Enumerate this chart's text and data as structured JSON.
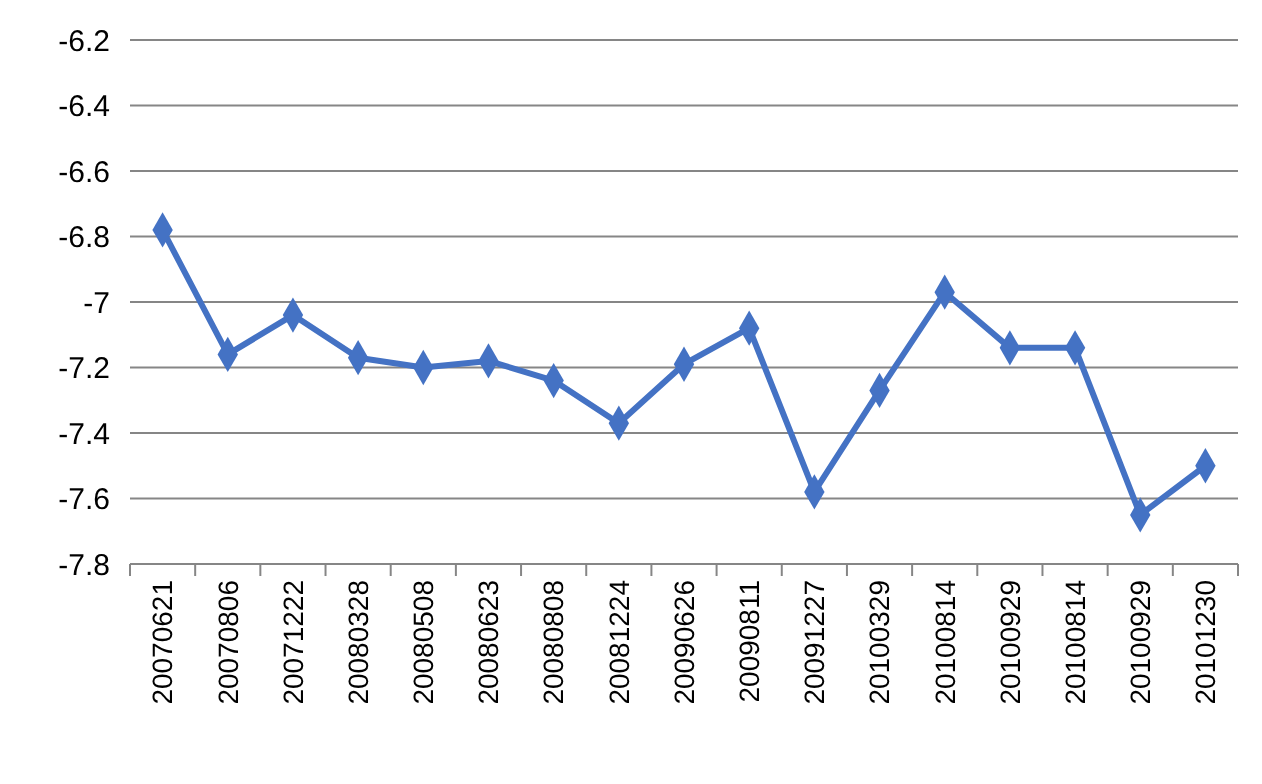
{
  "chart_data": {
    "type": "line",
    "categories": [
      "20070621",
      "20070806",
      "20071222",
      "20080328",
      "20080508",
      "20080623",
      "20080808",
      "20081224",
      "20090626",
      "20090811",
      "20091227",
      "20100329",
      "20100814",
      "20100929",
      "20100814",
      "20100929",
      "20101230"
    ],
    "series": [
      {
        "color": "#4472c4",
        "values": [
          -6.78,
          -7.16,
          -7.04,
          -7.17,
          -7.2,
          -7.18,
          -7.24,
          -7.37,
          -7.19,
          -7.08,
          -7.58,
          -7.27,
          -6.97,
          -7.14,
          -7.14,
          -7.65,
          -7.5
        ]
      }
    ],
    "ylim": [
      -7.8,
      -6.2
    ],
    "yticks": [
      -7.8,
      -7.6,
      -7.4,
      -7.2,
      -7,
      -6.8,
      -6.6,
      -6.4,
      -6.2
    ],
    "grid": "y",
    "marker": "diamond",
    "line_style": "solid"
  }
}
